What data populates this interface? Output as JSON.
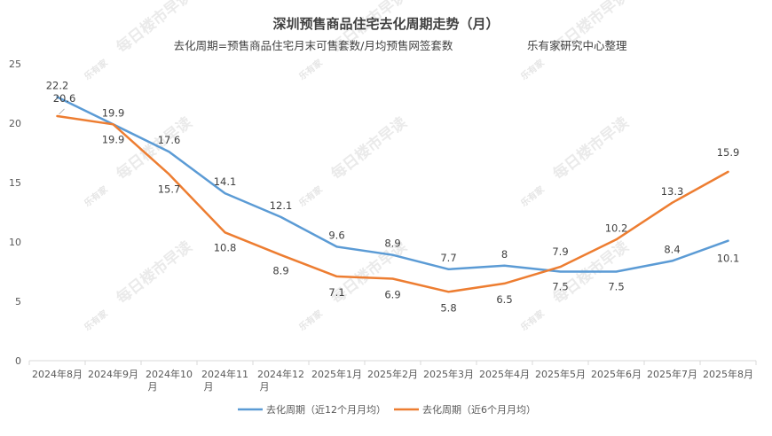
{
  "chart_data": {
    "type": "line",
    "title": "深圳预售商品住宅去化周期走势（月）",
    "subtitle": "去化周期=预售商品住宅月末可售套数/月均预售网签套数",
    "source": "乐有家研究中心整理",
    "watermark_logo": "乐有家",
    "watermark_text": "每日楼市早读",
    "categories": [
      "2024年8月",
      "2024年9月",
      "2024年10月",
      "2024年11月",
      "2024年12月",
      "2025年1月",
      "2025年2月",
      "2025年3月",
      "2025年4月",
      "2025年5月",
      "2025年6月",
      "2025年7月",
      "2025年8月"
    ],
    "category_lines": [
      [
        "2024年8月"
      ],
      [
        "2024年9月"
      ],
      [
        "2024年10",
        "月"
      ],
      [
        "2024年11",
        "月"
      ],
      [
        "2024年12",
        "月"
      ],
      [
        "2025年1月"
      ],
      [
        "2025年2月"
      ],
      [
        "2025年3月"
      ],
      [
        "2025年4月"
      ],
      [
        "2025年5月"
      ],
      [
        "2025年6月"
      ],
      [
        "2025年7月"
      ],
      [
        "2025年8月"
      ]
    ],
    "ylim": [
      0,
      25
    ],
    "yticks": [
      0,
      5,
      10,
      15,
      20,
      25
    ],
    "grid": false,
    "legend_position": "bottom",
    "series": [
      {
        "name": "去化周期（近12个月月均）",
        "color": "#5b9bd5",
        "values": [
          22.2,
          19.9,
          17.6,
          14.1,
          12.1,
          9.6,
          8.9,
          7.7,
          8,
          7.5,
          7.5,
          8.4,
          10.1
        ]
      },
      {
        "name": "去化周期（近6个月月均）",
        "color": "#ed7d31",
        "values": [
          20.6,
          19.9,
          15.7,
          10.8,
          8.9,
          7.1,
          6.9,
          5.8,
          6.5,
          7.9,
          10.2,
          13.3,
          15.9
        ]
      }
    ]
  }
}
